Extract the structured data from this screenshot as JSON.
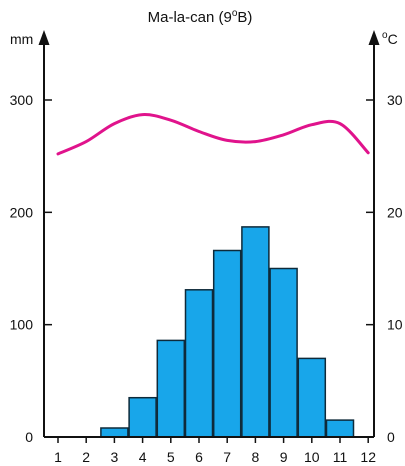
{
  "chart_data": {
    "type": "bar",
    "title_main": "Ma-la-can (9",
    "title_degree": "o",
    "title_end": "B)",
    "left_unit": "mm",
    "right_unit_degree": "o",
    "right_unit_letter": "C",
    "categories": [
      "1",
      "2",
      "3",
      "4",
      "5",
      "6",
      "7",
      "8",
      "9",
      "10",
      "11",
      "12"
    ],
    "precipitation": {
      "values": [
        0,
        0,
        8,
        35,
        86,
        131,
        166,
        187,
        150,
        70,
        15,
        0
      ],
      "ylim": [
        0,
        300
      ],
      "ticks": [
        0,
        100,
        200,
        300
      ]
    },
    "temperature": {
      "values": [
        25.2,
        26.3,
        27.9,
        28.7,
        28.2,
        27.2,
        26.4,
        26.3,
        26.9,
        27.8,
        27.9,
        25.3
      ],
      "ylim": [
        0,
        30
      ],
      "ticks": [
        0,
        10,
        20,
        30
      ]
    },
    "bar_color": "#18a6ea",
    "line_color": "#e0138c"
  }
}
